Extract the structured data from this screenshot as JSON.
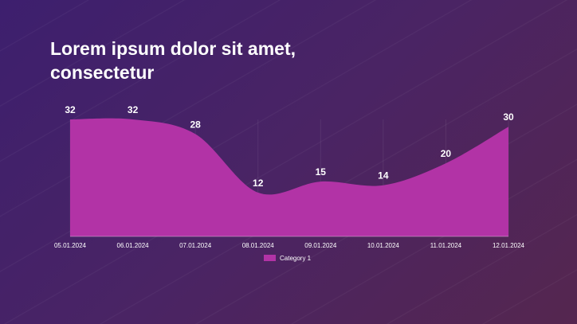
{
  "title": "Lorem ipsum dolor sit amet, consectetur",
  "colors": {
    "series": "#b233a6",
    "text": "#ffffff"
  },
  "chart_data": {
    "type": "area",
    "x": [
      "05.01.2024",
      "06.01.2024",
      "07.01.2024",
      "08.01.2024",
      "09.01.2024",
      "10.01.2024",
      "11.01.2024",
      "12.01.2024"
    ],
    "series": [
      {
        "name": "Category 1",
        "values": [
          32,
          32,
          28,
          12,
          15,
          14,
          20,
          30
        ]
      }
    ],
    "ylim": [
      0,
      32
    ],
    "grid": false,
    "legend": "bottom"
  }
}
